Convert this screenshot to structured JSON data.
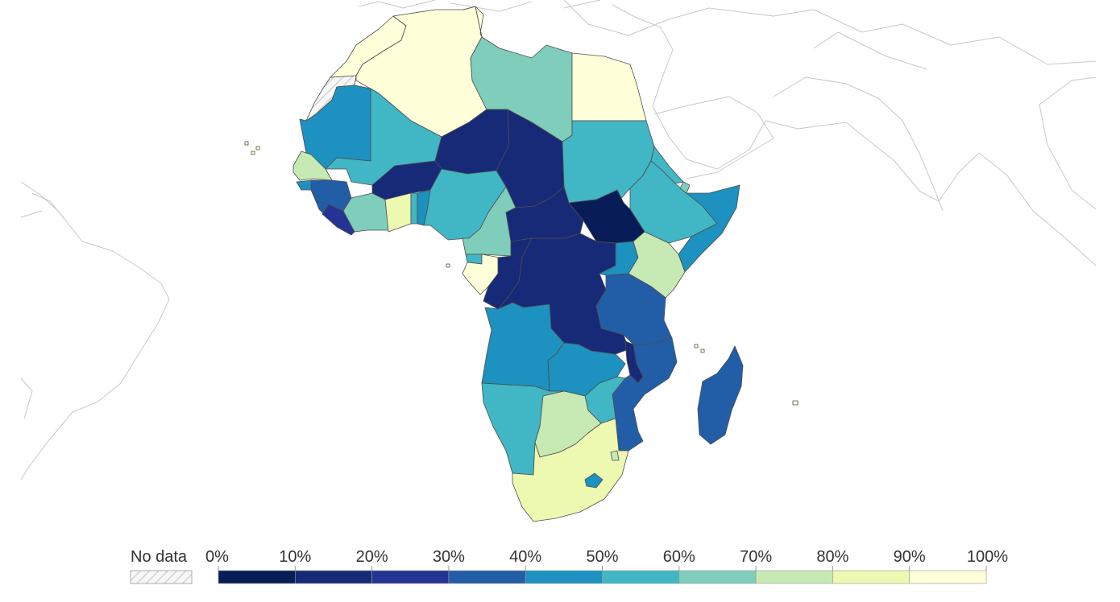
{
  "legend": {
    "no_data_label": "No data",
    "tick_labels": [
      "0%",
      "10%",
      "20%",
      "30%",
      "40%",
      "50%",
      "60%",
      "70%",
      "80%",
      "90%",
      "100%"
    ],
    "bin_colors": [
      "#081d58",
      "#172a78",
      "#253494",
      "#225ea8",
      "#1d91c0",
      "#41b6c4",
      "#7fcdbb",
      "#c7e9b4",
      "#edf8b1",
      "#ffffd9"
    ]
  },
  "map": {
    "colors": {
      "no_data": "#f4f4f4",
      "border": "#4d4d4d",
      "outside": "#c8c8c8"
    }
  }
}
